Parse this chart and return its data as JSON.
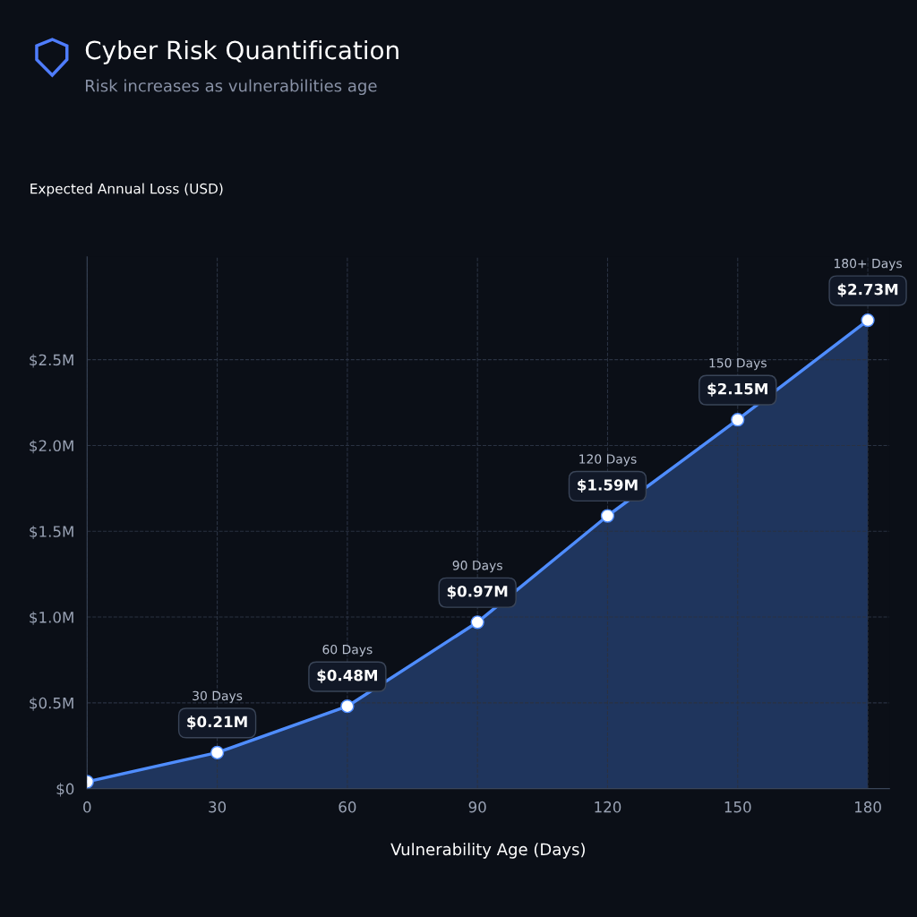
{
  "chart_data": {
    "type": "area",
    "title": "Cyber Risk Quantification",
    "subtitle": "Risk increases as vulnerabilities age",
    "xlabel": "Vulnerability Age (Days)",
    "ylabel": "Expected Annual Loss (USD)",
    "series": [
      {
        "color": "#4f8dff",
        "x": [
          0,
          30,
          60,
          90,
          120,
          150,
          180
        ],
        "values": [
          0.04,
          0.21,
          0.48,
          0.97,
          1.59,
          2.15,
          2.73
        ],
        "value_labels": [
          null,
          "$0.21M",
          "$0.48M",
          "$0.97M",
          "$1.59M",
          "$2.15M",
          "$2.73M"
        ]
      }
    ],
    "annotations": [
      "30 Days",
      "60 Days",
      "90 Days",
      "120 Days",
      "150 Days",
      "180+ Days"
    ],
    "xlim": [
      0,
      185
    ],
    "xticks": [
      0,
      30,
      60,
      90,
      120,
      150,
      180
    ],
    "ylim": [
      0,
      3.1
    ],
    "yticks": [
      {
        "value": 0,
        "label": "$0"
      },
      {
        "value": 0.5,
        "label": "$0.5M"
      },
      {
        "value": 1.0,
        "label": "$1.0M"
      },
      {
        "value": 1.5,
        "label": "$1.5M"
      },
      {
        "value": 2.0,
        "label": "$2.0M"
      },
      {
        "value": 2.5,
        "label": "$2.5M"
      }
    ],
    "grid": true,
    "marker": "circle",
    "line_style": "solid"
  }
}
